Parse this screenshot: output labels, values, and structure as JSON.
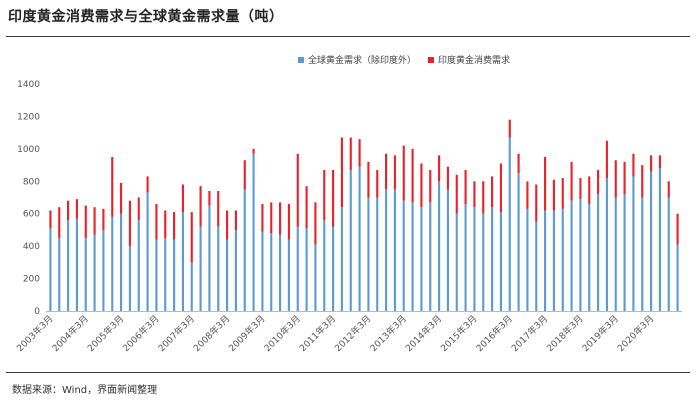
{
  "title": "印度黄金消费需求与全球黄金需求量（吨）",
  "source": "数据来源：Wind，界面新闻整理",
  "colors": {
    "global": "#5b9bd5",
    "india": "#e8222a",
    "grid": "#e6e6e6",
    "axis": "#bbbbbb"
  },
  "chart_data": {
    "type": "bar",
    "stacked": true,
    "title": "印度黄金消费需求与全球黄金需求量（吨）",
    "ylim": [
      0,
      1400
    ],
    "yticks": [
      0,
      200,
      400,
      600,
      800,
      1000,
      1200,
      1400
    ],
    "grid": false,
    "legend_position": "top",
    "categories": [
      "2003年3月",
      "2003年6月",
      "2003年9月",
      "2003年12月",
      "2004年3月",
      "2004年6月",
      "2004年9月",
      "2004年12月",
      "2005年3月",
      "2005年6月",
      "2005年9月",
      "2005年12月",
      "2006年3月",
      "2006年6月",
      "2006年9月",
      "2006年12月",
      "2007年3月",
      "2007年6月",
      "2007年9月",
      "2007年12月",
      "2008年3月",
      "2008年6月",
      "2008年9月",
      "2008年12月",
      "2009年3月",
      "2009年6月",
      "2009年9月",
      "2009年12月",
      "2010年3月",
      "2010年6月",
      "2010年9月",
      "2010年12月",
      "2011年3月",
      "2011年6月",
      "2011年9月",
      "2011年12月",
      "2012年3月",
      "2012年6月",
      "2012年9月",
      "2012年12月",
      "2013年3月",
      "2013年6月",
      "2013年9月",
      "2013年12月",
      "2014年3月",
      "2014年6月",
      "2014年9月",
      "2014年12月",
      "2015年3月",
      "2015年6月",
      "2015年9月",
      "2015年12月",
      "2016年3月",
      "2016年6月",
      "2016年9月",
      "2016年12月",
      "2017年3月",
      "2017年6月",
      "2017年9月",
      "2017年12月",
      "2018年3月",
      "2018年6月",
      "2018年9月",
      "2018年12月",
      "2019年3月",
      "2019年6月",
      "2019年9月",
      "2019年12月",
      "2020年3月",
      "2020年6月",
      "2020年9月",
      "2020年12月"
    ],
    "tick_labels": [
      "2003年3月",
      "2004年3月",
      "2005年3月",
      "2006年3月",
      "2007年3月",
      "2008年3月",
      "2009年3月",
      "2010年3月",
      "2011年3月",
      "2012年3月",
      "2013年3月",
      "2014年3月",
      "2015年3月",
      "2016年3月",
      "2017年3月",
      "2018年3月",
      "2019年3月",
      "2020年3月"
    ],
    "series": [
      {
        "name": "全球黄金需求（除印度外）",
        "values": [
          510,
          450,
          560,
          570,
          450,
          470,
          500,
          580,
          600,
          400,
          560,
          730,
          440,
          450,
          440,
          610,
          300,
          520,
          650,
          520,
          440,
          500,
          750,
          970,
          490,
          480,
          470,
          440,
          520,
          510,
          410,
          560,
          520,
          640,
          870,
          890,
          700,
          700,
          750,
          750,
          680,
          670,
          640,
          670,
          800,
          750,
          600,
          660,
          640,
          600,
          640,
          610,
          1070,
          850,
          630,
          550,
          620,
          620,
          630,
          680,
          690,
          660,
          720,
          820,
          700,
          720,
          830,
          700,
          860,
          880,
          700,
          410
        ]
      },
      {
        "name": "印度黄金消费需求",
        "values": [
          110,
          190,
          120,
          120,
          200,
          170,
          130,
          370,
          190,
          280,
          140,
          100,
          220,
          170,
          170,
          170,
          310,
          250,
          90,
          220,
          180,
          120,
          180,
          30,
          170,
          190,
          200,
          220,
          450,
          260,
          260,
          310,
          350,
          430,
          200,
          170,
          220,
          170,
          220,
          210,
          340,
          330,
          270,
          200,
          160,
          140,
          240,
          210,
          160,
          200,
          190,
          300,
          110,
          120,
          170,
          230,
          330,
          190,
          190,
          240,
          130,
          170,
          150,
          230,
          230,
          200,
          140,
          200,
          100,
          80,
          100,
          190
        ]
      }
    ]
  }
}
